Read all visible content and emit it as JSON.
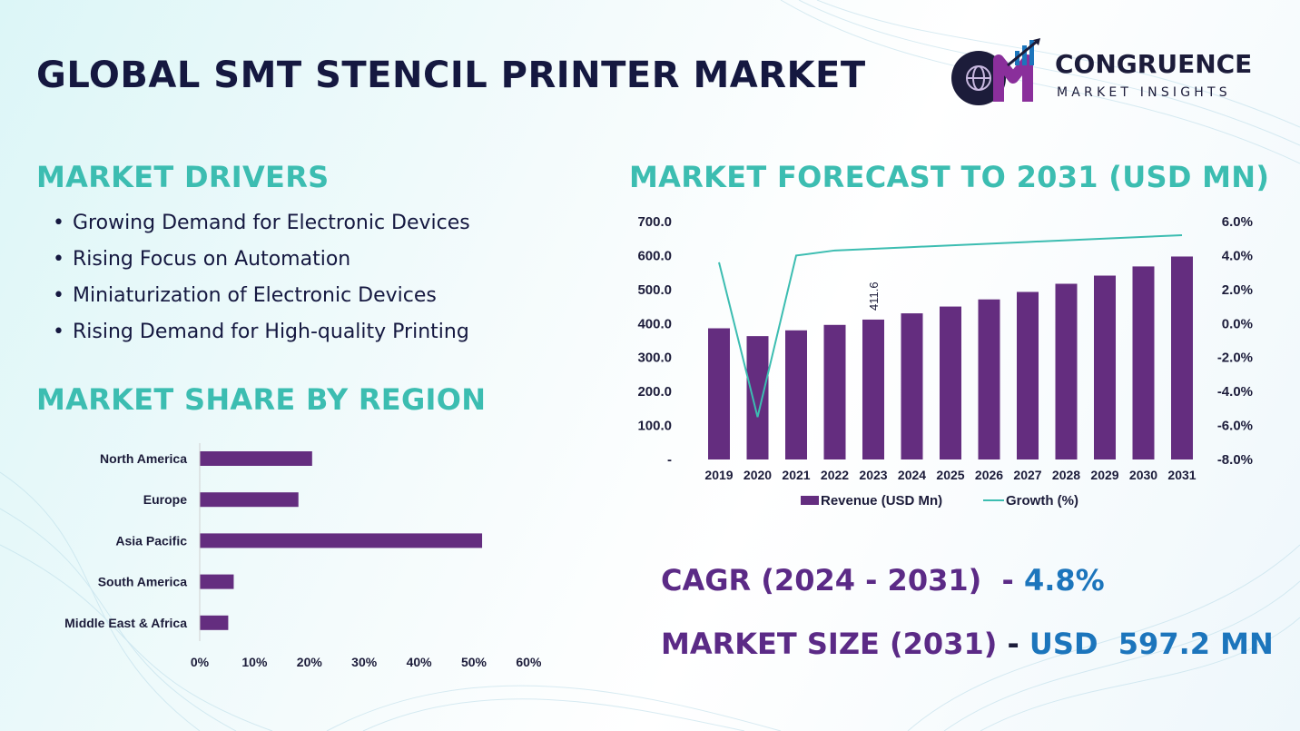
{
  "title": "GLOBAL SMT STENCIL PRINTER MARKET",
  "logo": {
    "name": "CONGRUENCE",
    "sub": "MARKET INSIGHTS"
  },
  "drivers": {
    "heading": "MARKET DRIVERS",
    "items": [
      "Growing Demand for Electronic Devices",
      "Rising Focus on Automation",
      "Miniaturization of Electronic Devices",
      "Rising Demand for High-quality Printing"
    ]
  },
  "share": {
    "heading": "MARKET SHARE BY REGION"
  },
  "forecast": {
    "heading": "MARKET FORECAST TO 2031 (USD MN)"
  },
  "stats": {
    "cagr_label": "CAGR (2024 - 2031)",
    "cagr_sep": "  - ",
    "cagr_value": "4.8%",
    "size_label": "MARKET SIZE (2031)",
    "size_sep": " - ",
    "size_value": "USD  597.2 MN"
  },
  "colors": {
    "bar": "#642d7f",
    "line": "#3cbdb1",
    "heading": "#3cbdb1",
    "title": "#151840",
    "accent_value": "#1c75bc",
    "accent_label": "#5b2a86"
  },
  "chart_data": [
    {
      "type": "bar",
      "orientation": "horizontal",
      "categories": [
        "North America",
        "Europe",
        "Asia Pacific",
        "South America",
        "Middle East & Africa"
      ],
      "values": [
        20.5,
        18,
        51.5,
        6.2,
        5.2
      ],
      "xticks": [
        "0%",
        "10%",
        "20%",
        "30%",
        "40%",
        "50%",
        "60%"
      ],
      "xlim": [
        0,
        60
      ],
      "grid": false
    },
    {
      "type": "bar",
      "categories": [
        "2019",
        "2020",
        "2021",
        "2022",
        "2023",
        "2024",
        "2025",
        "2026",
        "2027",
        "2028",
        "2029",
        "2030",
        "2031"
      ],
      "series": [
        {
          "name": "Revenue (USD Mn)",
          "type": "bar",
          "axis": "left",
          "values": [
            386,
            363,
            380,
            396,
            411.6,
            430,
            450,
            471,
            493,
            517,
            541,
            568,
            597.2
          ]
        },
        {
          "name": "Growth (%)",
          "type": "line",
          "axis": "right",
          "values": [
            3.6,
            -5.5,
            4.0,
            4.3,
            4.4,
            4.5,
            4.6,
            4.7,
            4.8,
            4.9,
            5.0,
            5.1,
            5.2
          ]
        }
      ],
      "data_labels": [
        {
          "index": 4,
          "text": "411.6"
        }
      ],
      "yticks_left": [
        "-",
        "100.0",
        "200.0",
        "300.0",
        "400.0",
        "500.0",
        "600.0",
        "700.0"
      ],
      "ylim_left": [
        0,
        700
      ],
      "yticks_right": [
        "-8.0%",
        "-6.0%",
        "-4.0%",
        "-2.0%",
        "0.0%",
        "2.0%",
        "4.0%",
        "6.0%"
      ],
      "ylim_right": [
        -8,
        6
      ],
      "legend_position": "bottom",
      "grid": false
    }
  ]
}
